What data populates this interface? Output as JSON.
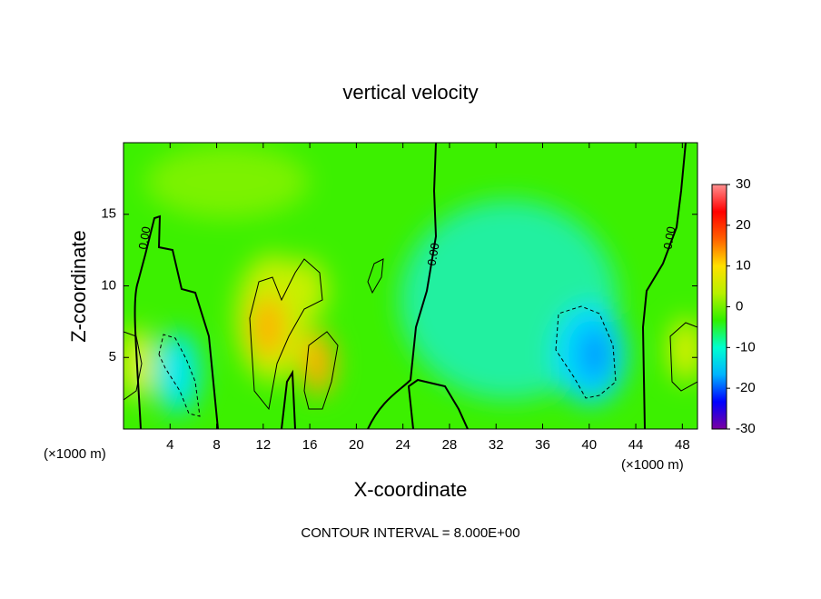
{
  "chart_data": {
    "type": "contour",
    "title": "vertical velocity",
    "xlabel": "X-coordinate",
    "ylabel": "Z-coordinate",
    "x_unit": "(×1000 m)",
    "y_unit": "(×1000 m)",
    "footer": "CONTOUR INTERVAL = 8.000E+00",
    "xlim": [
      0,
      49.3
    ],
    "ylim": [
      0,
      20
    ],
    "xticks": [
      4,
      8,
      12,
      16,
      20,
      24,
      28,
      32,
      36,
      40,
      44,
      48
    ],
    "yticks": [
      5,
      10,
      15
    ],
    "contour_labels": [
      "0.00",
      "0.00",
      "0.00"
    ],
    "colorbar": {
      "lim": [
        -30,
        30
      ],
      "ticks": [
        30,
        20,
        10,
        0,
        -10,
        -20,
        -30
      ],
      "colors": [
        "#7a00a0",
        "#0000ff",
        "#00b4ff",
        "#00ffd0",
        "#30f000",
        "#b8f000",
        "#ffe000",
        "#ff6000",
        "#ff0000",
        "#ff9090"
      ]
    }
  }
}
